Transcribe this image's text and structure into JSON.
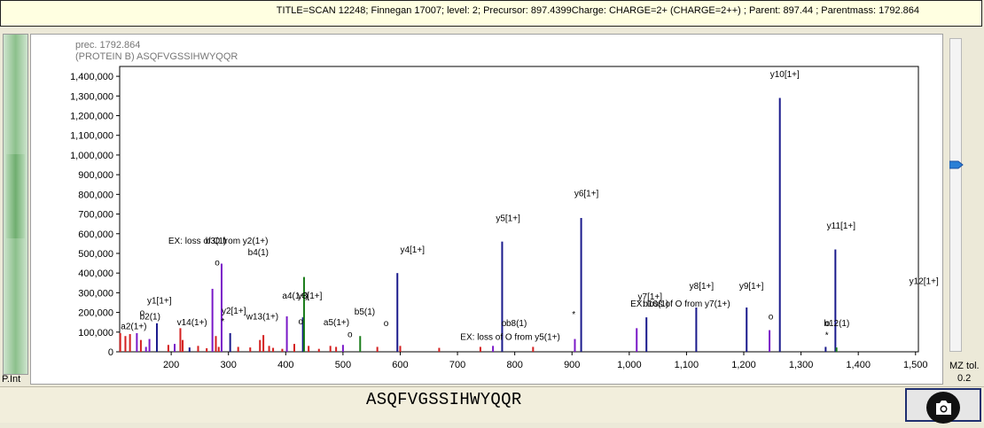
{
  "header": {
    "title": "TITLE=SCAN 12248; Finnegan 17007; level: 2; Precursor: 897.4399Charge: CHARGE=2+ (CHARGE=2++) ; Parent: 897.44 ; Parentmass: 1792.864"
  },
  "left_panel": {
    "label": "P.Int"
  },
  "right_panel": {
    "mz_label": "MZ tol.",
    "mz_value": "0.2"
  },
  "sequence": "ASQFVGSSIHWYQQR",
  "camera_icon": "camera-icon",
  "colors": {
    "blue": "#1a1a8c",
    "purple": "#7a19c8",
    "red": "#d42020",
    "green": "#1b7d1b",
    "axis": "#000000",
    "slider": "#2a7fd6"
  },
  "chart_data": {
    "type": "bar",
    "info_lines": [
      "prec. 1792.864",
      "(PROTEIN B) ASQFVGSSIHWYQQR"
    ],
    "xlim": [
      110,
      1505
    ],
    "ylim": [
      0,
      1450000
    ],
    "x_ticks": [
      200,
      300,
      400,
      500,
      600,
      700,
      800,
      900,
      1000,
      1100,
      1200,
      1300,
      1400,
      1500
    ],
    "x_tick_labels": [
      "200",
      "300",
      "400",
      "500",
      "600",
      "700",
      "800",
      "900",
      "1,000",
      "1,100",
      "1,200",
      "1,300",
      "1,400",
      "1,500"
    ],
    "y_ticks": [
      0,
      100000,
      200000,
      300000,
      400000,
      500000,
      600000,
      700000,
      800000,
      900000,
      1000000,
      1100000,
      1200000,
      1300000,
      1400000
    ],
    "y_tick_labels": [
      "0",
      "100,000",
      "200,000",
      "300,000",
      "400,000",
      "500,000",
      "600,000",
      "700,000",
      "800,000",
      "900,000",
      "1,000,000",
      "1,100,000",
      "1,200,000",
      "1,300,000",
      "1,400,000"
    ],
    "peaks": [
      {
        "mz": 111,
        "i": 95000,
        "c": "red"
      },
      {
        "mz": 120,
        "i": 80000,
        "c": "red"
      },
      {
        "mz": 128,
        "i": 90000,
        "c": "red"
      },
      {
        "mz": 140,
        "i": 95000,
        "c": "purple"
      },
      {
        "mz": 147,
        "i": 60000,
        "c": "red"
      },
      {
        "mz": 156,
        "i": 25000,
        "c": "purple"
      },
      {
        "mz": 162,
        "i": 65000,
        "c": "purple"
      },
      {
        "mz": 175,
        "i": 145000,
        "c": "blue"
      },
      {
        "mz": 195,
        "i": 35000,
        "c": "red"
      },
      {
        "mz": 206,
        "i": 40000,
        "c": "purple"
      },
      {
        "mz": 216,
        "i": 120000,
        "c": "red"
      },
      {
        "mz": 220,
        "i": 60000,
        "c": "red"
      },
      {
        "mz": 232,
        "i": 22000,
        "c": "blue"
      },
      {
        "mz": 247,
        "i": 30000,
        "c": "red"
      },
      {
        "mz": 262,
        "i": 18000,
        "c": "red"
      },
      {
        "mz": 272,
        "i": 320000,
        "c": "purple"
      },
      {
        "mz": 278,
        "i": 80000,
        "c": "red"
      },
      {
        "mz": 283,
        "i": 25000,
        "c": "red"
      },
      {
        "mz": 288,
        "i": 448000,
        "c": "purple"
      },
      {
        "mz": 303,
        "i": 95000,
        "c": "blue"
      },
      {
        "mz": 317,
        "i": 25000,
        "c": "red"
      },
      {
        "mz": 338,
        "i": 22000,
        "c": "red"
      },
      {
        "mz": 355,
        "i": 60000,
        "c": "red"
      },
      {
        "mz": 361,
        "i": 85000,
        "c": "red"
      },
      {
        "mz": 371,
        "i": 30000,
        "c": "red"
      },
      {
        "mz": 378,
        "i": 20000,
        "c": "red"
      },
      {
        "mz": 394,
        "i": 15000,
        "c": "red"
      },
      {
        "mz": 402,
        "i": 180000,
        "c": "purple"
      },
      {
        "mz": 415,
        "i": 40000,
        "c": "red"
      },
      {
        "mz": 430,
        "i": 175000,
        "c": "blue"
      },
      {
        "mz": 432,
        "i": 380000,
        "c": "green"
      },
      {
        "mz": 440,
        "i": 30000,
        "c": "red"
      },
      {
        "mz": 458,
        "i": 15000,
        "c": "red"
      },
      {
        "mz": 478,
        "i": 30000,
        "c": "red"
      },
      {
        "mz": 488,
        "i": 25000,
        "c": "red"
      },
      {
        "mz": 500,
        "i": 35000,
        "c": "purple"
      },
      {
        "mz": 530,
        "i": 80000,
        "c": "green"
      },
      {
        "mz": 560,
        "i": 25000,
        "c": "red"
      },
      {
        "mz": 595,
        "i": 400000,
        "c": "blue"
      },
      {
        "mz": 600,
        "i": 30000,
        "c": "red"
      },
      {
        "mz": 668,
        "i": 20000,
        "c": "red"
      },
      {
        "mz": 740,
        "i": 25000,
        "c": "red"
      },
      {
        "mz": 762,
        "i": 30000,
        "c": "purple"
      },
      {
        "mz": 778,
        "i": 560000,
        "c": "blue"
      },
      {
        "mz": 832,
        "i": 25000,
        "c": "red"
      },
      {
        "mz": 905,
        "i": 65000,
        "c": "purple"
      },
      {
        "mz": 916,
        "i": 680000,
        "c": "blue"
      },
      {
        "mz": 1013,
        "i": 120000,
        "c": "purple"
      },
      {
        "mz": 1030,
        "i": 175000,
        "c": "blue"
      },
      {
        "mz": 1117,
        "i": 225000,
        "c": "blue"
      },
      {
        "mz": 1205,
        "i": 225000,
        "c": "blue"
      },
      {
        "mz": 1245,
        "i": 110000,
        "c": "purple"
      },
      {
        "mz": 1263,
        "i": 1290000,
        "c": "blue"
      },
      {
        "mz": 1343,
        "i": 25000,
        "c": "blue"
      },
      {
        "mz": 1360,
        "i": 520000,
        "c": "blue"
      },
      {
        "mz": 1362,
        "i": 22000,
        "c": "green"
      }
    ],
    "annotations": [
      {
        "text": "EX: loss of O from y2(1+)",
        "mz": 195,
        "i": 550000
      },
      {
        "text": "b3(1)",
        "mz": 260,
        "i": 550000
      },
      {
        "text": "o",
        "mz": 276,
        "i": 440000
      },
      {
        "text": "b4(1)",
        "mz": 334,
        "i": 490000
      },
      {
        "text": "y4[1+]",
        "mz": 600,
        "i": 505000
      },
      {
        "text": "y5[1+]",
        "mz": 767,
        "i": 665000
      },
      {
        "text": "y6[1+]",
        "mz": 904,
        "i": 790000
      },
      {
        "text": "y10[1+]",
        "mz": 1246,
        "i": 1395000
      },
      {
        "text": "y11[1+]",
        "mz": 1345,
        "i": 625000
      },
      {
        "text": "y12[1+]",
        "mz": 1489,
        "i": 345000
      },
      {
        "text": "y1[1+]",
        "mz": 158,
        "i": 245000
      },
      {
        "text": "a2(1+)",
        "mz": 112,
        "i": 115000
      },
      {
        "text": "b2(1)",
        "mz": 145,
        "i": 165000
      },
      {
        "text": "o",
        "mz": 145,
        "i": 185000
      },
      {
        "text": "v14(1+)",
        "mz": 210,
        "i": 135000
      },
      {
        "text": "y2[1+]",
        "mz": 288,
        "i": 193000
      },
      {
        "text": "*",
        "mz": 287,
        "i": 140000
      },
      {
        "text": "w13(1+)",
        "mz": 331,
        "i": 165000
      },
      {
        "text": "a4(1+)",
        "mz": 394,
        "i": 270000
      },
      {
        "text": "y3[1+]",
        "mz": 421,
        "i": 270000
      },
      {
        "text": "o",
        "mz": 422,
        "i": 140000
      },
      {
        "text": "a5(1+)",
        "mz": 466,
        "i": 135000
      },
      {
        "text": "b5(1)",
        "mz": 520,
        "i": 190000
      },
      {
        "text": "o",
        "mz": 508,
        "i": 75000
      },
      {
        "text": "o",
        "mz": 571,
        "i": 130000
      },
      {
        "text": "o",
        "mz": 777,
        "i": 130000
      },
      {
        "text": "b8(1)",
        "mz": 785,
        "i": 130000
      },
      {
        "text": "EX: loss of O from y5(1+)",
        "mz": 705,
        "i": 60000
      },
      {
        "text": "*",
        "mz": 900,
        "i": 175000
      },
      {
        "text": "EX: loss of O from y7(1+)",
        "mz": 1002,
        "i": 230000
      },
      {
        "text": "b10(1)",
        "mz": 1024,
        "i": 230000
      },
      {
        "text": "y7[1+]",
        "mz": 1015,
        "i": 265000
      },
      {
        "text": "y8[1+]",
        "mz": 1105,
        "i": 320000
      },
      {
        "text": "y9[1+]",
        "mz": 1192,
        "i": 320000
      },
      {
        "text": "o",
        "mz": 1243,
        "i": 165000
      },
      {
        "text": "b12(1)",
        "mz": 1340,
        "i": 130000
      },
      {
        "text": "o",
        "mz": 1342,
        "i": 130000
      },
      {
        "text": "*",
        "mz": 1342,
        "i": 70000
      }
    ]
  }
}
